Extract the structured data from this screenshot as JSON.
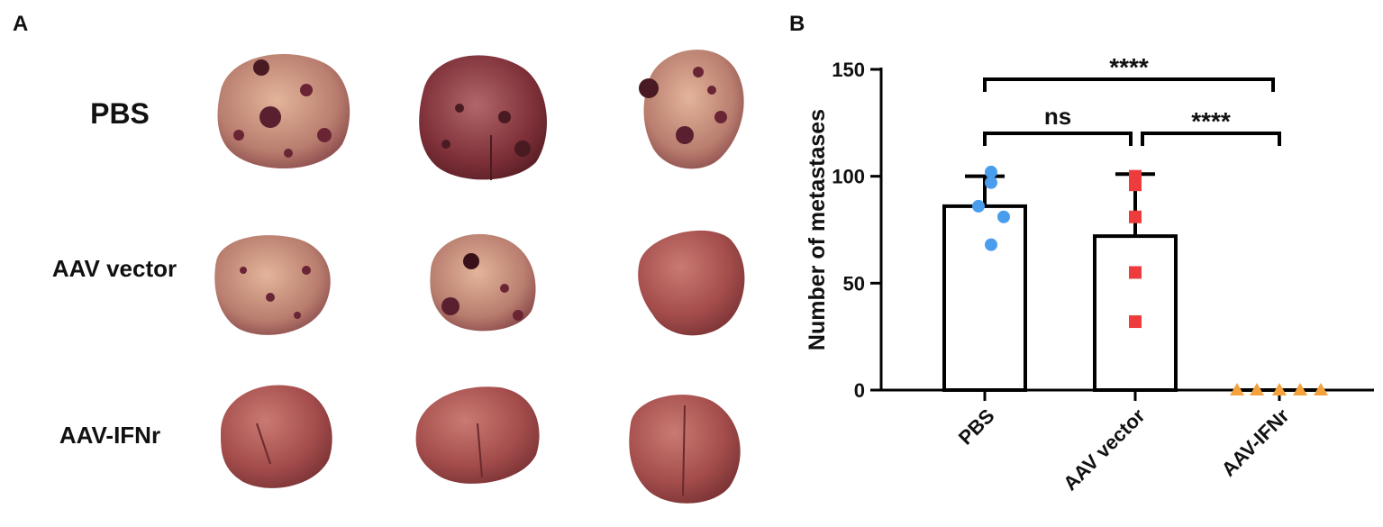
{
  "panel_a": {
    "label": "A",
    "rows": [
      "PBS",
      "AAV vector",
      "AAV-IFNr"
    ]
  },
  "chart_data": {
    "type": "bar",
    "label": "B",
    "ylabel": "Number of metastases",
    "categories": [
      "PBS",
      "AAV vector",
      "AAV-IFNr"
    ],
    "values": [
      86,
      72,
      0
    ],
    "errors": [
      14,
      29,
      0
    ],
    "points": [
      [
        102,
        97,
        86,
        81,
        68
      ],
      [
        100,
        96,
        81,
        55,
        32
      ],
      [
        0,
        0,
        0,
        0,
        0
      ]
    ],
    "point_colors": [
      "#4a9ded",
      "#ee3b3b",
      "#f5a23c"
    ],
    "markers": [
      "circle",
      "square",
      "triangle"
    ],
    "bar_color": "#ffffff",
    "annotations": [
      "****",
      "ns",
      "****"
    ],
    "ylim": [
      0,
      150
    ],
    "yticks": [
      0,
      50,
      100,
      150
    ]
  }
}
